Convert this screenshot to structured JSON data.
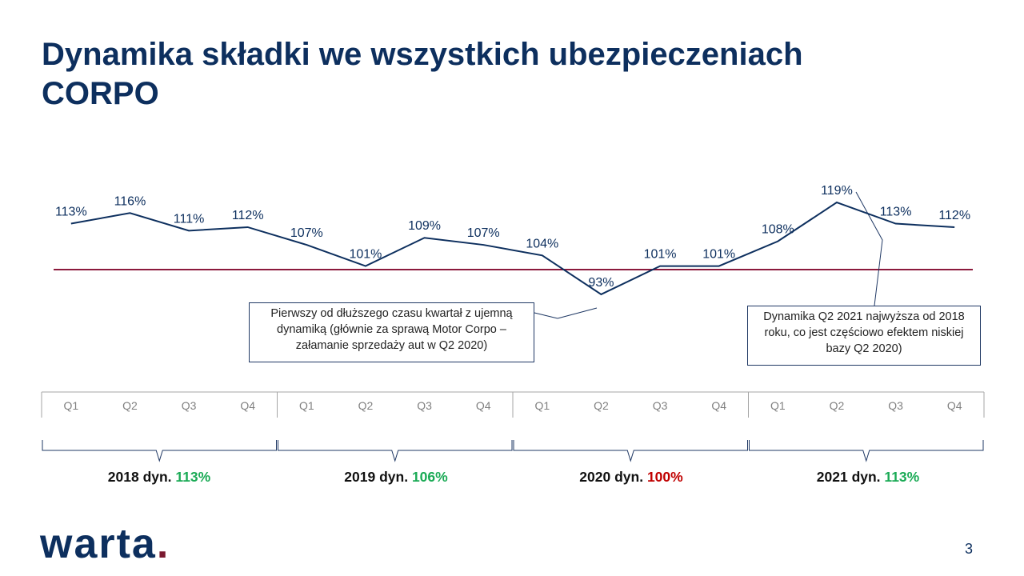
{
  "title": {
    "line1": "Dynamika składki we wszystkich ubezpieczeniach",
    "line2": "CORPO"
  },
  "chart_data": {
    "type": "line",
    "categories": [
      "Q1",
      "Q2",
      "Q3",
      "Q4",
      "Q1",
      "Q2",
      "Q3",
      "Q4",
      "Q1",
      "Q2",
      "Q3",
      "Q4",
      "Q1",
      "Q2",
      "Q3",
      "Q4"
    ],
    "years": [
      "2018",
      "2019",
      "2020",
      "2021"
    ],
    "series": [
      {
        "values": [
          113,
          116,
          111,
          112,
          107,
          101,
          109,
          107,
          104,
          93,
          101,
          101,
          108,
          119,
          113,
          112
        ]
      }
    ],
    "labels": [
      "113%",
      "116%",
      "111%",
      "112%",
      "107%",
      "101%",
      "109%",
      "107%",
      "104%",
      "93%",
      "101%",
      "101%",
      "108%",
      "119%",
      "113%",
      "112%"
    ],
    "reference_line": 100,
    "colors": {
      "line": "#0d2f5e",
      "reference": "#8b1a3c",
      "positive": "#1aaa55",
      "negative": "#c00000"
    }
  },
  "annotations": [
    "Pierwszy od dłuższego czasu kwartał z ujemną dynamiką (głównie za sprawą Motor Corpo – załamanie sprzedaży aut w Q2 2020)",
    "Dynamika Q2 2021 najwyższa od 2018 roku, co jest częściowo efektem niskiej bazy Q2 2020)"
  ],
  "year_summary": [
    {
      "label": "2018 dyn.",
      "value": "113%",
      "status": "positive"
    },
    {
      "label": "2019 dyn.",
      "value": "106%",
      "status": "positive"
    },
    {
      "label": "2020 dyn.",
      "value": "100%",
      "status": "negative"
    },
    {
      "label": "2021 dyn.",
      "value": "113%",
      "status": "positive"
    }
  ],
  "logo": {
    "text": "warta",
    "dot": "."
  },
  "page_number": "3"
}
